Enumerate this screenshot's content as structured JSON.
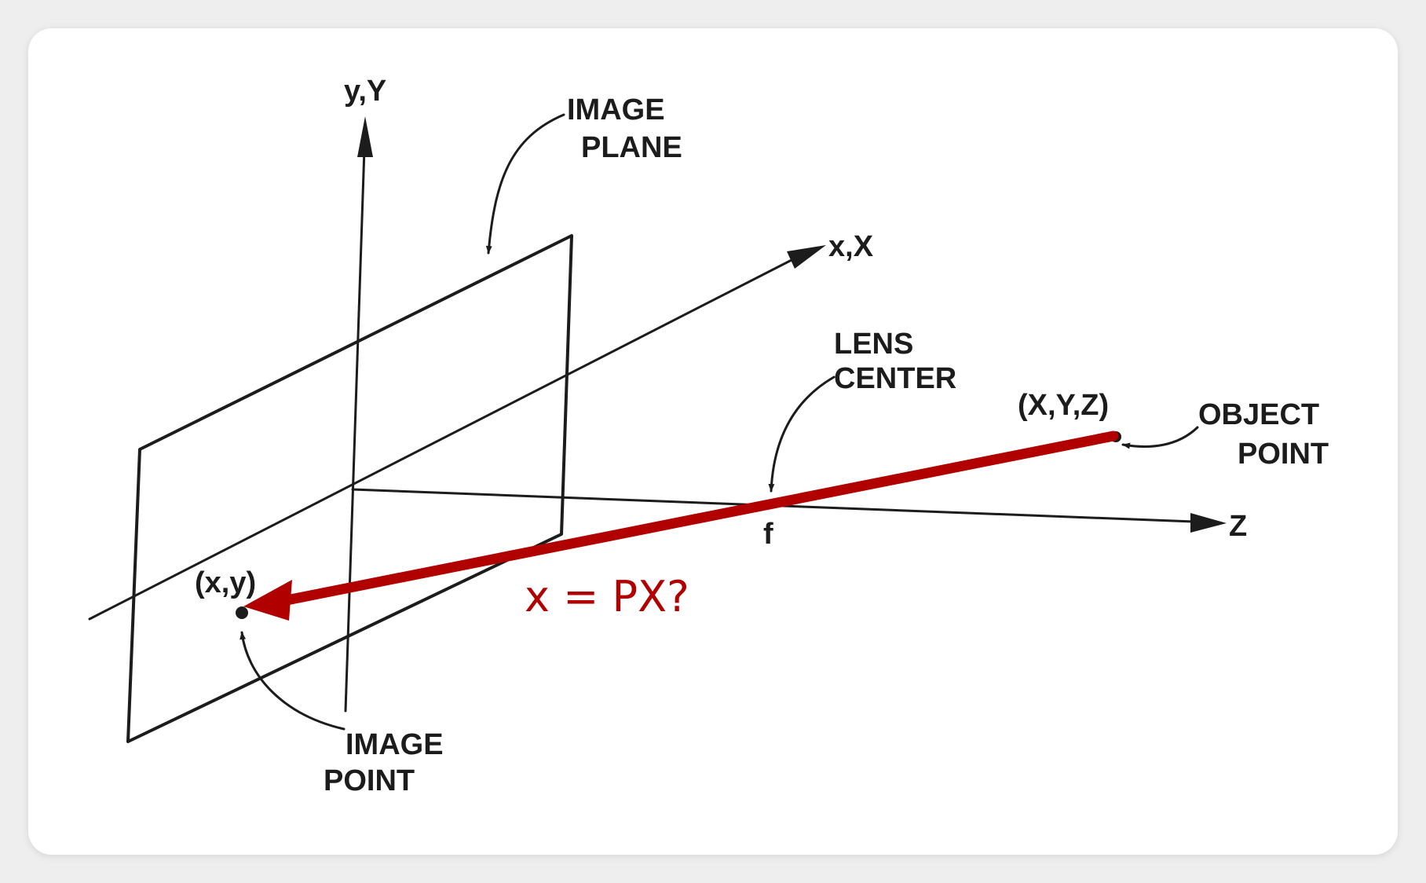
{
  "labels": {
    "y_axis": "y,Y",
    "x_axis": "x,X",
    "z_axis": "Z",
    "image_plane_line1": "IMAGE",
    "image_plane_line2": "PLANE",
    "lens_center_line1": "LENS",
    "lens_center_line2": "CENTER",
    "focal": "f",
    "object_coords": "(X,Y,Z)",
    "object_point_line1": "OBJECT",
    "object_point_line2": "POINT",
    "image_coords": "(x,y)",
    "image_point_line1": "IMAGE",
    "image_point_line2": "POINT"
  },
  "annotation": {
    "equation": "x = PX?",
    "color": "#b00000"
  }
}
